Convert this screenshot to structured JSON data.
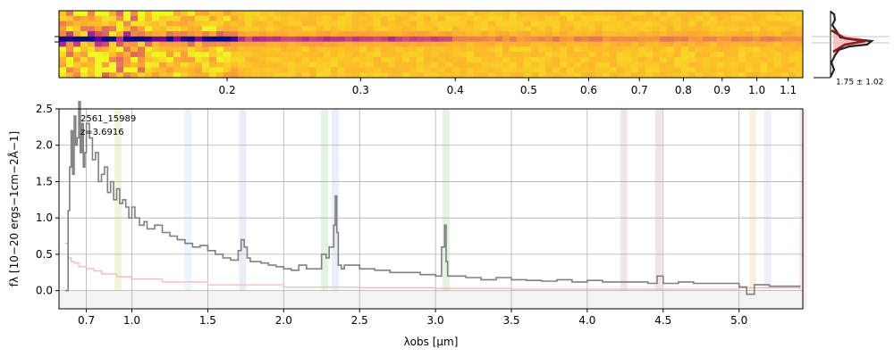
{
  "chart_data": [
    {
      "type": "heatmap",
      "panel": "2d-spectrum",
      "top_axis_ticks": [
        "0.2",
        "0.3",
        "0.4",
        "0.5",
        "0.6",
        "0.7",
        "0.8",
        "0.9",
        "1.0",
        "1.1"
      ],
      "top_axis_tick_values": [
        0.2,
        0.3,
        0.4,
        0.5,
        0.6,
        0.7,
        0.8,
        0.9,
        1.0,
        1.1
      ],
      "colormap": "plasma",
      "trace_row_fraction": 0.43
    },
    {
      "type": "area",
      "panel": "profile",
      "annotation": "1.75 ± 1.02"
    },
    {
      "type": "line",
      "panel": "1d-spectrum",
      "annotation": [
        "2561_15989",
        "z=3.6916"
      ],
      "xlabel": "λobs [μm]",
      "ylabel": "fλ [10−20 ergs−1cm−2Å−1]",
      "x_ticks": [
        "0.7",
        "1.0",
        "1.5",
        "2.0",
        "2.5",
        "3.0",
        "3.5",
        "4.0",
        "4.5",
        "5.0"
      ],
      "x_tick_values": [
        0.7,
        1.0,
        1.5,
        2.0,
        2.5,
        3.0,
        3.5,
        4.0,
        4.5,
        5.0
      ],
      "y_ticks": [
        "0.0",
        "0.5",
        "1.0",
        "1.5",
        "2.0",
        "2.5"
      ],
      "y_tick_values": [
        0.0,
        0.5,
        1.0,
        1.5,
        2.0,
        2.5
      ],
      "xlim": [
        0.52,
        5.42
      ],
      "ylim": [
        -0.25,
        2.5
      ],
      "grid": true,
      "series": [
        {
          "role": "flux",
          "color": "#808080",
          "x": [
            0.56,
            0.57,
            0.58,
            0.59,
            0.6,
            0.61,
            0.62,
            0.63,
            0.64,
            0.65,
            0.66,
            0.67,
            0.68,
            0.69,
            0.7,
            0.72,
            0.74,
            0.76,
            0.78,
            0.8,
            0.82,
            0.84,
            0.86,
            0.88,
            0.9,
            0.92,
            0.94,
            0.96,
            0.98,
            1.0,
            1.02,
            1.05,
            1.08,
            1.1,
            1.15,
            1.2,
            1.25,
            1.3,
            1.35,
            1.4,
            1.45,
            1.5,
            1.55,
            1.6,
            1.65,
            1.7,
            1.72,
            1.74,
            1.76,
            1.78,
            1.8,
            1.85,
            1.9,
            1.95,
            2.0,
            2.05,
            2.1,
            2.15,
            2.2,
            2.25,
            2.28,
            2.3,
            2.33,
            2.34,
            2.35,
            2.36,
            2.38,
            2.4,
            2.5,
            2.6,
            2.7,
            2.8,
            2.9,
            3.0,
            3.04,
            3.06,
            3.07,
            3.08,
            3.1,
            3.2,
            3.3,
            3.4,
            3.5,
            3.6,
            3.7,
            3.8,
            3.9,
            4.0,
            4.1,
            4.2,
            4.3,
            4.4,
            4.46,
            4.5,
            4.6,
            4.7,
            4.8,
            4.9,
            5.0,
            5.05,
            5.1,
            5.2,
            5.3,
            5.4
          ],
          "y": [
            0.0,
            0.0,
            1.1,
            1.7,
            2.2,
            1.6,
            2.4,
            2.0,
            2.1,
            2.6,
            1.9,
            2.3,
            1.7,
            1.9,
            2.3,
            2.1,
            1.8,
            1.9,
            1.5,
            1.6,
            1.7,
            1.35,
            1.5,
            1.25,
            1.4,
            1.2,
            1.25,
            1.15,
            1.0,
            1.15,
            1.0,
            0.9,
            0.95,
            0.85,
            0.9,
            0.8,
            0.75,
            0.7,
            0.65,
            0.6,
            0.62,
            0.55,
            0.5,
            0.45,
            0.42,
            0.55,
            0.7,
            0.6,
            0.45,
            0.4,
            0.4,
            0.38,
            0.35,
            0.33,
            0.3,
            0.28,
            0.35,
            0.3,
            0.3,
            0.5,
            0.45,
            0.6,
            0.9,
            1.3,
            0.8,
            0.35,
            0.3,
            0.35,
            0.3,
            0.28,
            0.25,
            0.25,
            0.22,
            0.2,
            0.6,
            0.9,
            0.4,
            0.2,
            0.2,
            0.18,
            0.15,
            0.18,
            0.15,
            0.14,
            0.13,
            0.15,
            0.12,
            0.14,
            0.12,
            0.12,
            0.12,
            0.1,
            0.2,
            0.1,
            0.12,
            0.1,
            0.1,
            0.1,
            0.05,
            -0.05,
            0.08,
            0.06,
            0.06,
            0.05
          ]
        },
        {
          "role": "error",
          "color": "#f4b8b8",
          "x": [
            0.56,
            0.58,
            0.6,
            0.62,
            0.65,
            0.7,
            0.75,
            0.8,
            0.9,
            1.0,
            1.2,
            1.5,
            2.0,
            2.5,
            3.0,
            3.5,
            4.0,
            4.5,
            5.0,
            5.4
          ],
          "y": [
            0.65,
            0.45,
            0.4,
            0.38,
            0.33,
            0.3,
            0.27,
            0.23,
            0.19,
            0.16,
            0.12,
            0.08,
            0.05,
            0.04,
            0.03,
            0.02,
            0.02,
            0.02,
            0.04,
            0.02
          ]
        }
      ],
      "emission_bands": [
        {
          "x": 0.91,
          "color": "#9acd32"
        },
        {
          "x": 1.37,
          "color": "#87ceeb"
        },
        {
          "x": 1.73,
          "color": "#9999dd"
        },
        {
          "x": 2.27,
          "color": "#66bb66"
        },
        {
          "x": 2.34,
          "color": "#88aadd"
        },
        {
          "x": 3.07,
          "color": "#66bb66"
        },
        {
          "x": 4.24,
          "color": "#b07070"
        },
        {
          "x": 4.47,
          "color": "#b07070"
        },
        {
          "x": 5.09,
          "color": "#f4a460"
        },
        {
          "x": 5.19,
          "color": "#bb99dd"
        },
        {
          "x": 5.42,
          "color": "#dd88cc"
        }
      ]
    }
  ]
}
